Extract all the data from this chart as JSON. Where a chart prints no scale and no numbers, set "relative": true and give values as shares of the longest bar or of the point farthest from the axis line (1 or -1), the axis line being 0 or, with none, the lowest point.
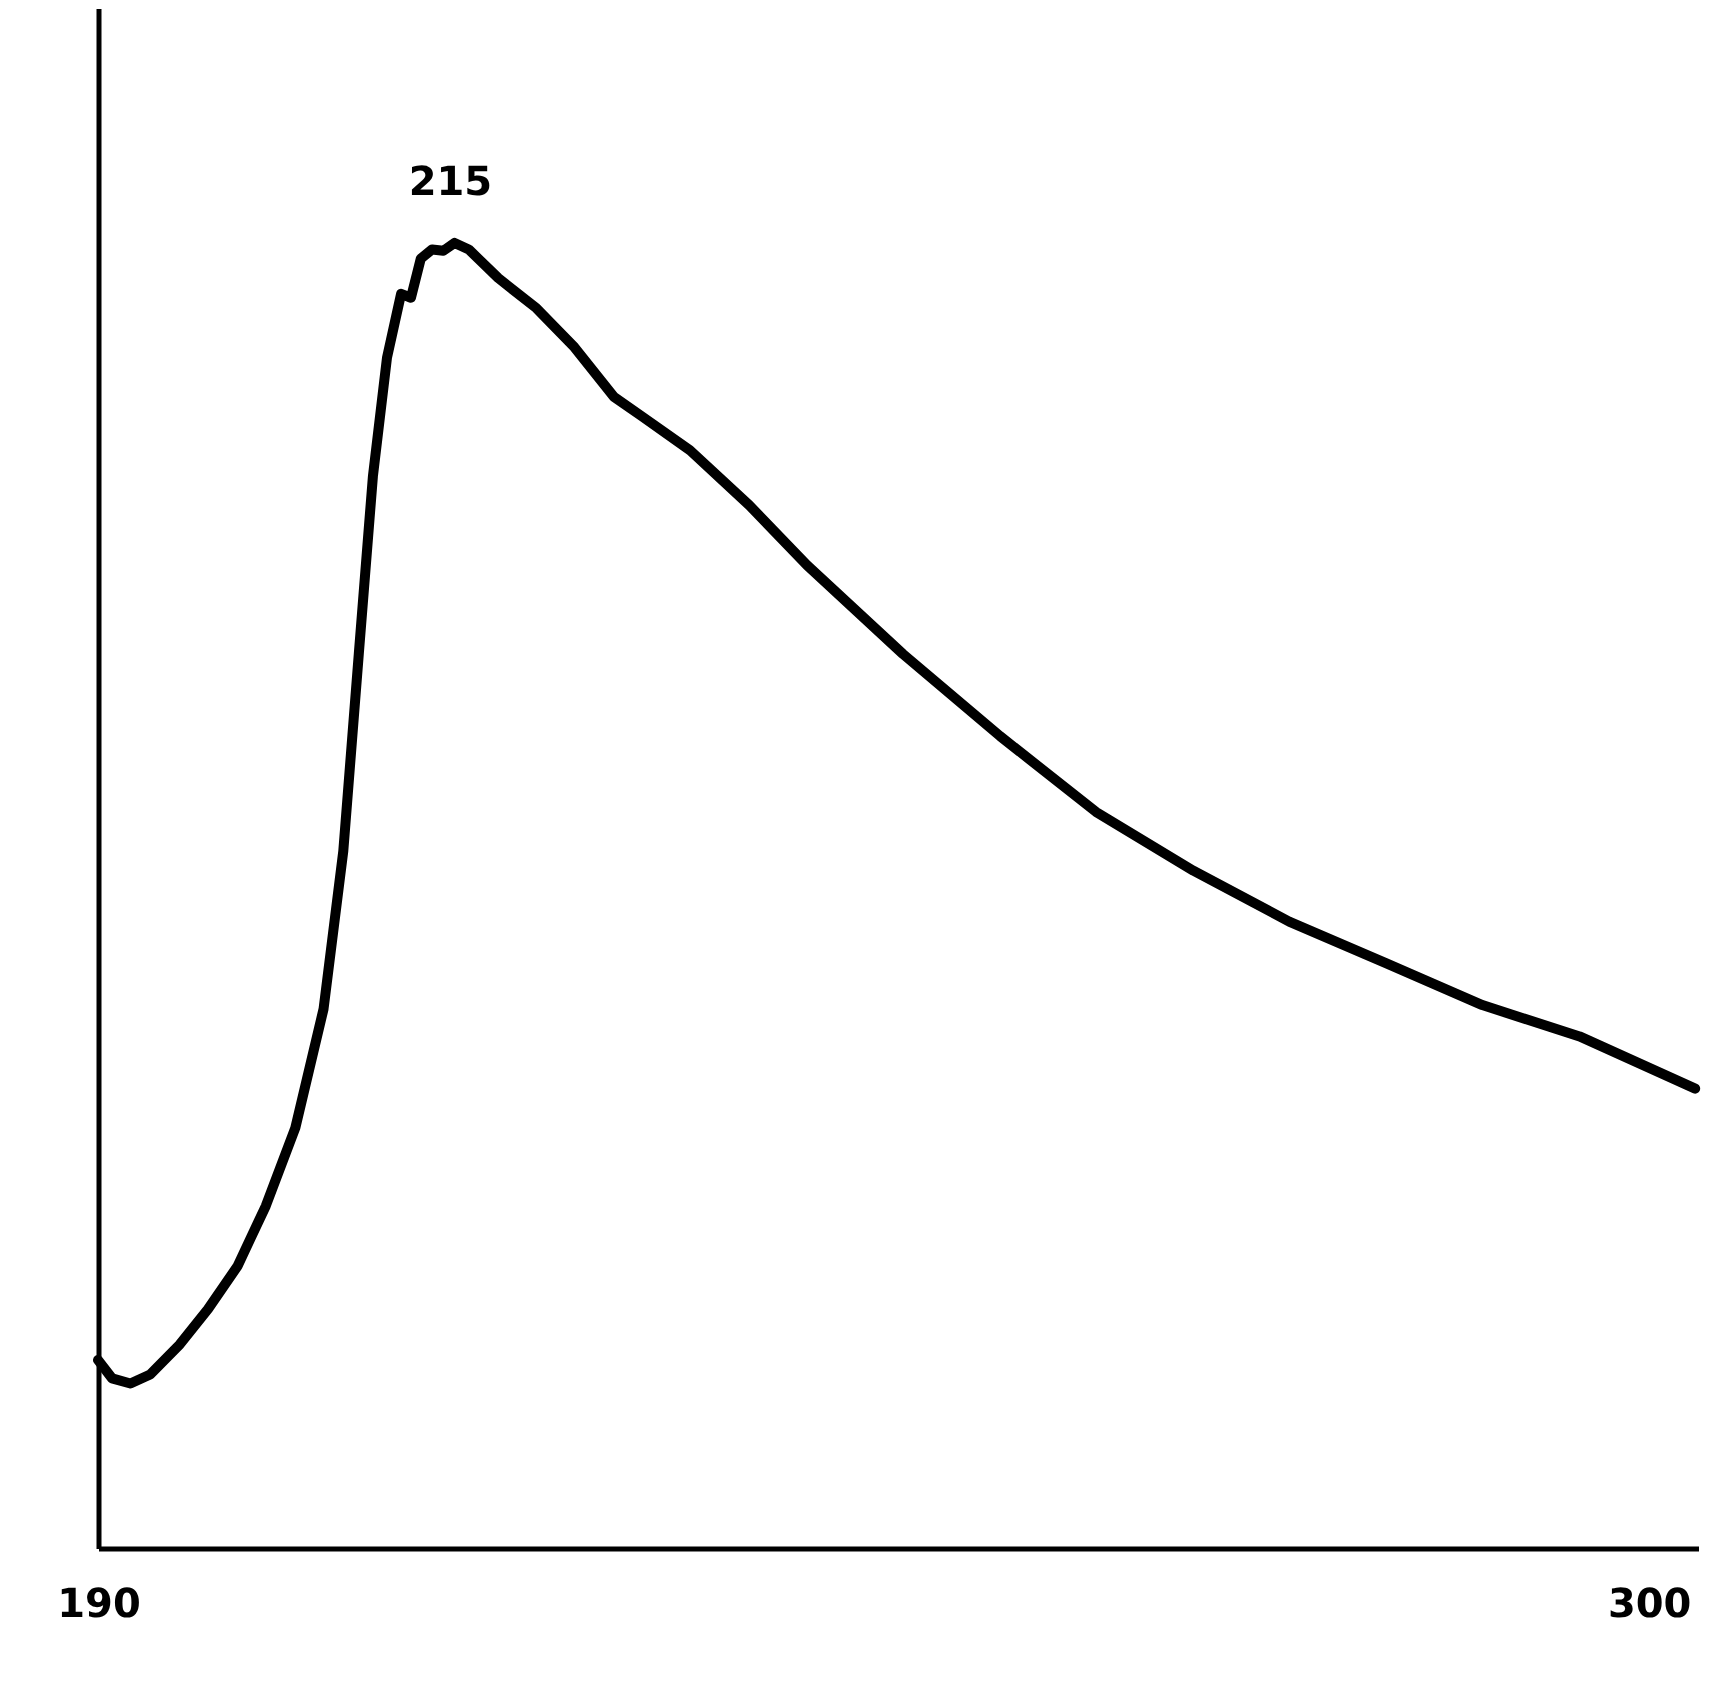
{
  "chart_data": {
    "type": "line",
    "relative": true,
    "annotations": [
      {
        "text": "215",
        "x": 215,
        "y": 1
      }
    ],
    "xlim": [
      190,
      303.5
    ],
    "xticks": [
      190,
      300
    ],
    "color": "#000000",
    "marker": "none",
    "line_style": "solid",
    "grid": false,
    "x": [
      190,
      191,
      192.3,
      193.7,
      195.8,
      197.8,
      199.9,
      201.9,
      204,
      206,
      207.4,
      208.5,
      209.5,
      210.5,
      211.5,
      212.2,
      212.9,
      213.7,
      214.5,
      215.3,
      216.3,
      218.4,
      221.1,
      223.8,
      226.6,
      228.6,
      232,
      236.2,
      240.3,
      247.1,
      254,
      260.8,
      267.7,
      274.5,
      281.4,
      288.2,
      295.1,
      303.3
    ],
    "values": [
      0.144,
      0.13,
      0.126,
      0.133,
      0.156,
      0.183,
      0.216,
      0.262,
      0.322,
      0.413,
      0.534,
      0.685,
      0.821,
      0.912,
      0.961,
      0.958,
      0.988,
      0.995,
      0.994,
      1.0,
      0.995,
      0.973,
      0.95,
      0.92,
      0.882,
      0.867,
      0.841,
      0.799,
      0.753,
      0.685,
      0.622,
      0.564,
      0.519,
      0.48,
      0.448,
      0.416,
      0.392,
      0.352
    ]
  }
}
